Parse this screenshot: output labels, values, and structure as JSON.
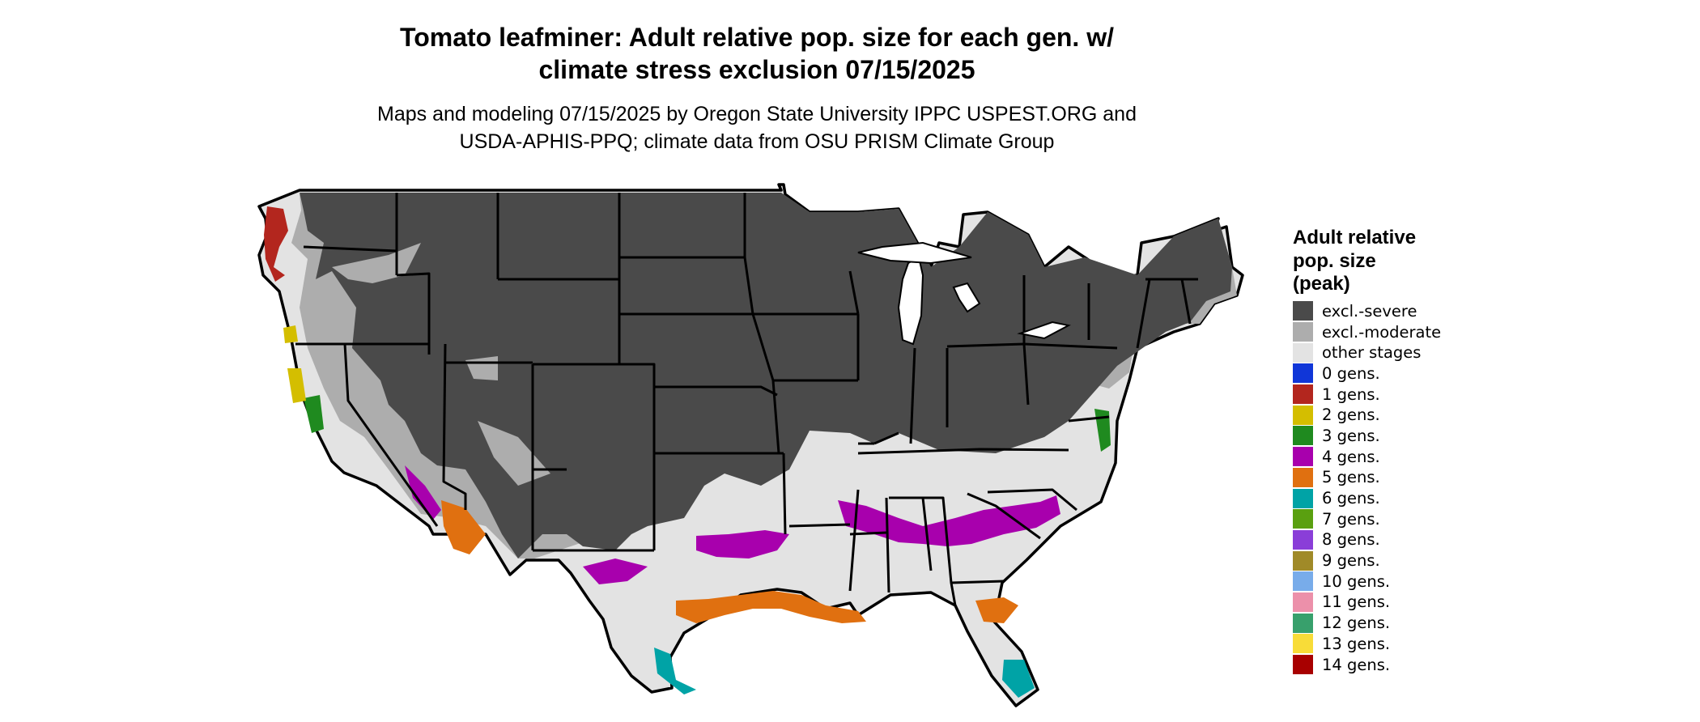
{
  "title": {
    "line1": "Tomato leafminer: Adult relative pop. size for each gen. w/",
    "line2": "climate stress exclusion 07/15/2025"
  },
  "subtitle": {
    "line1": "Maps and modeling 07/15/2025 by Oregon State University IPPC USPEST.ORG and",
    "line2": "USDA-APHIS-PPQ; climate data from OSU PRISM Climate Group"
  },
  "legend": {
    "title_line1": "Adult relative",
    "title_line2": "pop. size",
    "title_line3": "(peak)",
    "items": [
      {
        "label": "excl.-severe",
        "color": "#4a4a4a"
      },
      {
        "label": "excl.-moderate",
        "color": "#adadad"
      },
      {
        "label": "other stages",
        "color": "#e3e3e3"
      },
      {
        "label": "0 gens.",
        "color": "#1036d8"
      },
      {
        "label": "1 gens.",
        "color": "#b3261e"
      },
      {
        "label": "2 gens.",
        "color": "#d4be00"
      },
      {
        "label": "3 gens.",
        "color": "#1f8a1f"
      },
      {
        "label": "4 gens.",
        "color": "#a800ad"
      },
      {
        "label": "5 gens.",
        "color": "#e07010"
      },
      {
        "label": "6 gens.",
        "color": "#00a3a6"
      },
      {
        "label": "7 gens.",
        "color": "#5aa010"
      },
      {
        "label": "8 gens.",
        "color": "#8a3ed8"
      },
      {
        "label": "9 gens.",
        "color": "#a08a28"
      },
      {
        "label": "10 gens.",
        "color": "#78acea"
      },
      {
        "label": "11 gens.",
        "color": "#ec90aa"
      },
      {
        "label": "12 gens.",
        "color": "#38a06c"
      },
      {
        "label": "13 gens.",
        "color": "#f8dc38"
      },
      {
        "label": "14 gens.",
        "color": "#a80000"
      }
    ]
  }
}
